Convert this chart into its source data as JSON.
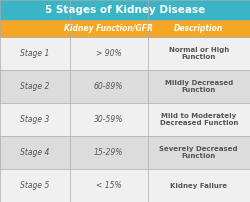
{
  "title": "5 Stages of Kidney Disease",
  "title_bg": "#3ab5c6",
  "title_color": "white",
  "header_bg": "#f5a623",
  "header_color": "white",
  "col_headers": [
    "Kidney Function/GFR",
    "Description"
  ],
  "rows": [
    [
      "Stage 1",
      "> 90%",
      "Normal or High\nFunction"
    ],
    [
      "Stage 2",
      "60-89%",
      "Mildly Decreased\nFunction"
    ],
    [
      "Stage 3",
      "30-59%",
      "Mild to Moderately\nDecreased Function"
    ],
    [
      "Stage 4",
      "15-29%",
      "Severely Decreased\nFunction"
    ],
    [
      "Stage 5",
      "< 15%",
      "Kidney Failure"
    ]
  ],
  "row_bg_odd": "#f0f0f0",
  "row_bg_even": "#dcdcdc",
  "stage_color": "#555555",
  "data_color": "#555555",
  "border_color": "#aaaaaa",
  "figsize": [
    2.5,
    2.02
  ],
  "dpi": 100
}
